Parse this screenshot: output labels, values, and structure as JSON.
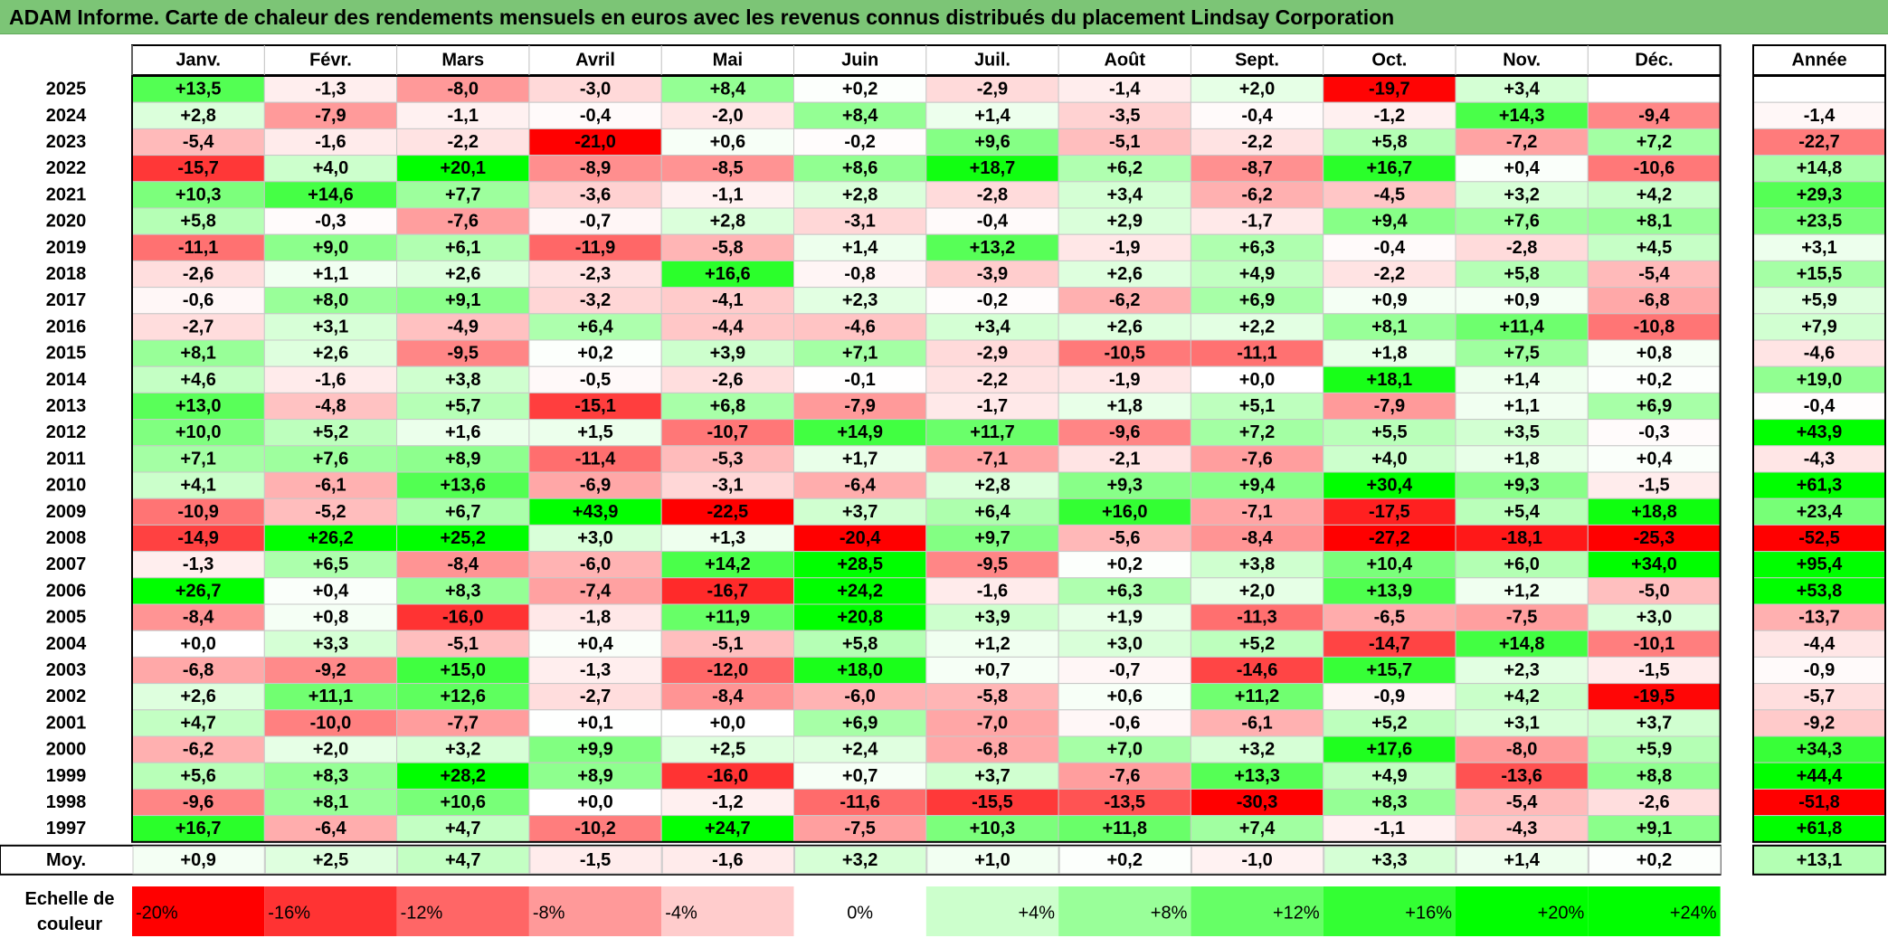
{
  "title": "ADAM Informe. Carte de chaleur des rendements mensuels en euros avec les revenus connus distribués du placement Lindsay Corporation",
  "chart_data": {
    "type": "heatmap",
    "months": [
      "Janv.",
      "Févr.",
      "Mars",
      "Avril",
      "Mai",
      "Juin",
      "Juil.",
      "Août",
      "Sept.",
      "Oct.",
      "Nov.",
      "Déc."
    ],
    "year_header": "Année",
    "rows": [
      {
        "year": "2025",
        "values": [
          "+13,5",
          "-1,3",
          "-8,0",
          "-3,0",
          "+8,4",
          "+0,2",
          "-2,9",
          "-1,4",
          "+2,0",
          "-19,7",
          "+3,4",
          ""
        ],
        "annual": ""
      },
      {
        "year": "2024",
        "values": [
          "+2,8",
          "-7,9",
          "-1,1",
          "-0,4",
          "-2,0",
          "+8,4",
          "+1,4",
          "-3,5",
          "-0,4",
          "-1,2",
          "+14,3",
          "-9,4"
        ],
        "annual": "-1,4"
      },
      {
        "year": "2023",
        "values": [
          "-5,4",
          "-1,6",
          "-2,2",
          "-21,0",
          "+0,6",
          "-0,2",
          "+9,6",
          "-5,1",
          "-2,2",
          "+5,8",
          "-7,2",
          "+7,2"
        ],
        "annual": "-22,7"
      },
      {
        "year": "2022",
        "values": [
          "-15,7",
          "+4,0",
          "+20,1",
          "-8,9",
          "-8,5",
          "+8,6",
          "+18,7",
          "+6,2",
          "-8,7",
          "+16,7",
          "+0,4",
          "-10,6"
        ],
        "annual": "+14,8"
      },
      {
        "year": "2021",
        "values": [
          "+10,3",
          "+14,6",
          "+7,7",
          "-3,6",
          "-1,1",
          "+2,8",
          "-2,8",
          "+3,4",
          "-6,2",
          "-4,5",
          "+3,2",
          "+4,2"
        ],
        "annual": "+29,3"
      },
      {
        "year": "2020",
        "values": [
          "+5,8",
          "-0,3",
          "-7,6",
          "-0,7",
          "+2,8",
          "-3,1",
          "-0,4",
          "+2,9",
          "-1,7",
          "+9,4",
          "+7,6",
          "+8,1"
        ],
        "annual": "+23,5"
      },
      {
        "year": "2019",
        "values": [
          "-11,1",
          "+9,0",
          "+6,1",
          "-11,9",
          "-5,8",
          "+1,4",
          "+13,2",
          "-1,9",
          "+6,3",
          "-0,4",
          "-2,8",
          "+4,5"
        ],
        "annual": "+3,1"
      },
      {
        "year": "2018",
        "values": [
          "-2,6",
          "+1,1",
          "+2,6",
          "-2,3",
          "+16,6",
          "-0,8",
          "-3,9",
          "+2,6",
          "+4,9",
          "-2,2",
          "+5,8",
          "-5,4"
        ],
        "annual": "+15,5"
      },
      {
        "year": "2017",
        "values": [
          "-0,6",
          "+8,0",
          "+9,1",
          "-3,2",
          "-4,1",
          "+2,3",
          "-0,2",
          "-6,2",
          "+6,9",
          "+0,9",
          "+0,9",
          "-6,8"
        ],
        "annual": "+5,9"
      },
      {
        "year": "2016",
        "values": [
          "-2,7",
          "+3,1",
          "-4,9",
          "+6,4",
          "-4,4",
          "-4,6",
          "+3,4",
          "+2,6",
          "+2,2",
          "+8,1",
          "+11,4",
          "-10,8"
        ],
        "annual": "+7,9"
      },
      {
        "year": "2015",
        "values": [
          "+8,1",
          "+2,6",
          "-9,5",
          "+0,2",
          "+3,9",
          "+7,1",
          "-2,9",
          "-10,5",
          "-11,1",
          "+1,8",
          "+7,5",
          "+0,8"
        ],
        "annual": "-4,6"
      },
      {
        "year": "2014",
        "values": [
          "+4,6",
          "-1,6",
          "+3,8",
          "-0,5",
          "-2,6",
          "-0,1",
          "-2,2",
          "-1,9",
          "+0,0",
          "+18,1",
          "+1,4",
          "+0,2"
        ],
        "annual": "+19,0"
      },
      {
        "year": "2013",
        "values": [
          "+13,0",
          "-4,8",
          "+5,7",
          "-15,1",
          "+6,8",
          "-7,9",
          "-1,7",
          "+1,8",
          "+5,1",
          "-7,9",
          "+1,1",
          "+6,9"
        ],
        "annual": "-0,4"
      },
      {
        "year": "2012",
        "values": [
          "+10,0",
          "+5,2",
          "+1,6",
          "+1,5",
          "-10,7",
          "+14,9",
          "+11,7",
          "-9,6",
          "+7,2",
          "+5,5",
          "+3,5",
          "-0,3"
        ],
        "annual": "+43,9"
      },
      {
        "year": "2011",
        "values": [
          "+7,1",
          "+7,6",
          "+8,9",
          "-11,4",
          "-5,3",
          "+1,7",
          "-7,1",
          "-2,1",
          "-7,6",
          "+4,0",
          "+1,8",
          "+0,4"
        ],
        "annual": "-4,3"
      },
      {
        "year": "2010",
        "values": [
          "+4,1",
          "-6,1",
          "+13,6",
          "-6,9",
          "-3,1",
          "-6,4",
          "+2,8",
          "+9,3",
          "+9,4",
          "+30,4",
          "+9,3",
          "-1,5"
        ],
        "annual": "+61,3"
      },
      {
        "year": "2009",
        "values": [
          "-10,9",
          "-5,2",
          "+6,7",
          "+43,9",
          "-22,5",
          "+3,7",
          "+6,4",
          "+16,0",
          "-7,1",
          "-17,5",
          "+5,4",
          "+18,8"
        ],
        "annual": "+23,4"
      },
      {
        "year": "2008",
        "values": [
          "-14,9",
          "+26,2",
          "+25,2",
          "+3,0",
          "+1,3",
          "-20,4",
          "+9,7",
          "-5,6",
          "-8,4",
          "-27,2",
          "-18,1",
          "-25,3"
        ],
        "annual": "-52,5"
      },
      {
        "year": "2007",
        "values": [
          "-1,3",
          "+6,5",
          "-8,4",
          "-6,0",
          "+14,2",
          "+28,5",
          "-9,5",
          "+0,2",
          "+3,8",
          "+10,4",
          "+6,0",
          "+34,0"
        ],
        "annual": "+95,4"
      },
      {
        "year": "2006",
        "values": [
          "+26,7",
          "+0,4",
          "+8,3",
          "-7,4",
          "-16,7",
          "+24,2",
          "-1,6",
          "+6,3",
          "+2,0",
          "+13,9",
          "+1,2",
          "-5,0"
        ],
        "annual": "+53,8"
      },
      {
        "year": "2005",
        "values": [
          "-8,4",
          "+0,8",
          "-16,0",
          "-1,8",
          "+11,9",
          "+20,8",
          "+3,9",
          "+1,9",
          "-11,3",
          "-6,5",
          "-7,5",
          "+3,0"
        ],
        "annual": "-13,7"
      },
      {
        "year": "2004",
        "values": [
          "+0,0",
          "+3,3",
          "-5,1",
          "+0,4",
          "-5,1",
          "+5,8",
          "+1,2",
          "+3,0",
          "+5,2",
          "-14,7",
          "+14,8",
          "-10,1"
        ],
        "annual": "-4,4"
      },
      {
        "year": "2003",
        "values": [
          "-6,8",
          "-9,2",
          "+15,0",
          "-1,3",
          "-12,0",
          "+18,0",
          "+0,7",
          "-0,7",
          "-14,6",
          "+15,7",
          "+2,3",
          "-1,5"
        ],
        "annual": "-0,9"
      },
      {
        "year": "2002",
        "values": [
          "+2,6",
          "+11,1",
          "+12,6",
          "-2,7",
          "-8,4",
          "-6,0",
          "-5,8",
          "+0,6",
          "+11,2",
          "-0,9",
          "+4,2",
          "-19,5"
        ],
        "annual": "-5,7"
      },
      {
        "year": "2001",
        "values": [
          "+4,7",
          "-10,0",
          "-7,7",
          "+0,1",
          "+0,0",
          "+6,9",
          "-7,0",
          "-0,6",
          "-6,1",
          "+5,2",
          "+3,1",
          "+3,7"
        ],
        "annual": "-9,2"
      },
      {
        "year": "2000",
        "values": [
          "-6,2",
          "+2,0",
          "+3,2",
          "+9,9",
          "+2,5",
          "+2,4",
          "-6,8",
          "+7,0",
          "+3,2",
          "+17,6",
          "-8,0",
          "+5,9"
        ],
        "annual": "+34,3"
      },
      {
        "year": "1999",
        "values": [
          "+5,6",
          "+8,3",
          "+28,2",
          "+8,9",
          "-16,0",
          "+0,7",
          "+3,7",
          "-7,6",
          "+13,3",
          "+4,9",
          "-13,6",
          "+8,8"
        ],
        "annual": "+44,4"
      },
      {
        "year": "1998",
        "values": [
          "-9,6",
          "+8,1",
          "+10,6",
          "+0,0",
          "-1,2",
          "-11,6",
          "-15,5",
          "-13,5",
          "-30,3",
          "+8,3",
          "-5,4",
          "-2,6"
        ],
        "annual": "-51,8"
      },
      {
        "year": "1997",
        "values": [
          "+16,7",
          "-6,4",
          "+4,7",
          "-10,2",
          "+24,7",
          "-7,5",
          "+10,3",
          "+11,8",
          "+7,4",
          "-1,1",
          "-4,3",
          "+9,1"
        ],
        "annual": "+61,8"
      }
    ],
    "average": {
      "label": "Moy.",
      "values": [
        "+0,9",
        "+2,5",
        "+4,7",
        "-1,5",
        "-1,6",
        "+3,2",
        "+1,0",
        "+0,2",
        "-1,0",
        "+3,3",
        "+1,4",
        "+0,2"
      ],
      "annual": "+13,1"
    },
    "legend": {
      "label_line1": "Echelle de",
      "label_line2": "couleur",
      "steps": [
        {
          "label": "-20%",
          "value": -20,
          "color": "#ff0000"
        },
        {
          "label": "-16%",
          "value": -16,
          "color": "#ff3333"
        },
        {
          "label": "-12%",
          "value": -12,
          "color": "#ff6666"
        },
        {
          "label": "-8%",
          "value": -8,
          "color": "#ff9999"
        },
        {
          "label": "-4%",
          "value": -4,
          "color": "#ffcccc"
        },
        {
          "label": "0%",
          "value": 0,
          "color": "#ffffff"
        },
        {
          "label": "+4%",
          "value": 4,
          "color": "#ccffcc"
        },
        {
          "label": "+8%",
          "value": 8,
          "color": "#99ff99"
        },
        {
          "label": "+12%",
          "value": 12,
          "color": "#66ff66"
        },
        {
          "label": "+16%",
          "value": 16,
          "color": "#33ff33"
        },
        {
          "label": "+20%",
          "value": 20,
          "color": "#00ff00"
        },
        {
          "label": "+24%",
          "value": 24,
          "color": "#00ff00"
        }
      ]
    }
  }
}
